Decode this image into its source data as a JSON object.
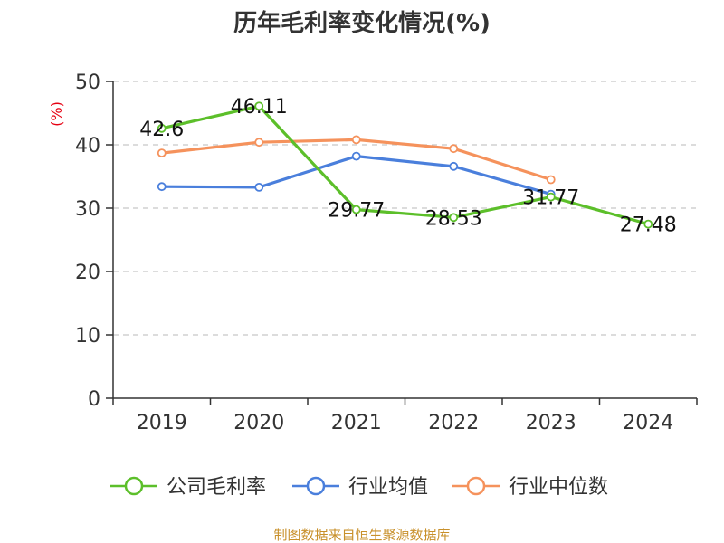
{
  "chart_data": {
    "type": "line",
    "title": "历年毛利率变化情况(%)",
    "ylabel": "(%)",
    "xlabel": "",
    "categories": [
      "2019",
      "2020",
      "2021",
      "2022",
      "2023",
      "2024"
    ],
    "ylim": [
      0,
      50
    ],
    "yticks": [
      0,
      10,
      20,
      30,
      40,
      50
    ],
    "grid": true,
    "legend_position": "bottom",
    "series": [
      {
        "name": "公司毛利率",
        "color": "#5cbf2a",
        "values": [
          42.6,
          46.11,
          29.77,
          28.53,
          31.77,
          27.48
        ],
        "show_labels": true
      },
      {
        "name": "行业均值",
        "color": "#4a7fdc",
        "values": [
          33.4,
          33.3,
          38.2,
          36.6,
          32.2,
          null
        ],
        "show_labels": false
      },
      {
        "name": "行业中位数",
        "color": "#f5925c",
        "values": [
          38.7,
          40.4,
          40.8,
          39.4,
          34.5,
          null
        ],
        "show_labels": false
      }
    ],
    "source": "制图数据来自恒生聚源数据库"
  }
}
